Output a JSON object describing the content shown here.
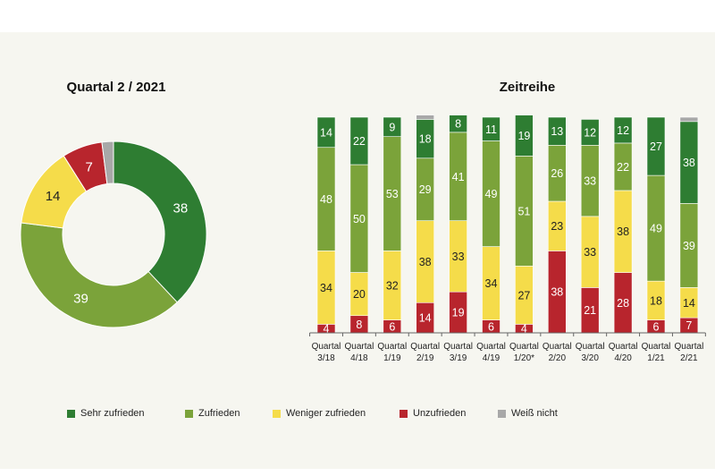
{
  "colors": {
    "sehr_zufrieden": "#2e7d32",
    "zufrieden": "#7ba33a",
    "weniger_zufrieden": "#f5dc4a",
    "unzufrieden": "#b8252d",
    "weiss_nicht": "#a8a8a8"
  },
  "chart_data": [
    {
      "type": "pie",
      "variant": "donut",
      "title": "Quartal 2 / 2021",
      "slices": [
        {
          "key": "sehr_zufrieden",
          "label": "Sehr zufrieden",
          "value": 38
        },
        {
          "key": "zufrieden",
          "label": "Zufrieden",
          "value": 39
        },
        {
          "key": "weniger_zufrieden",
          "label": "Weniger zufrieden",
          "value": 14
        },
        {
          "key": "unzufrieden",
          "label": "Unzufrieden",
          "value": 7
        },
        {
          "key": "weiss_nicht",
          "label": "Weiß nicht",
          "value": 2
        }
      ]
    },
    {
      "type": "bar",
      "stacked": true,
      "title": "Zeitreihe",
      "ylim": [
        0,
        100
      ],
      "categories": [
        [
          "Quartal",
          "3/18"
        ],
        [
          "Quartal",
          "4/18"
        ],
        [
          "Quartal",
          "1/19"
        ],
        [
          "Quartal",
          "2/19"
        ],
        [
          "Quartal",
          "3/19"
        ],
        [
          "Quartal",
          "4/19"
        ],
        [
          "Quartal",
          "1/20*"
        ],
        [
          "Quartal",
          "2/20"
        ],
        [
          "Quartal",
          "3/20"
        ],
        [
          "Quartal",
          "4/20"
        ],
        [
          "Quartal",
          "1/21"
        ],
        [
          "Quartal",
          "2/21"
        ]
      ],
      "series": [
        {
          "key": "unzufrieden",
          "name": "Unzufrieden",
          "values": [
            4,
            8,
            6,
            14,
            19,
            6,
            4,
            38,
            21,
            28,
            6,
            7
          ]
        },
        {
          "key": "weniger_zufrieden",
          "name": "Weniger zufrieden",
          "values": [
            34,
            20,
            32,
            38,
            33,
            34,
            27,
            23,
            33,
            38,
            18,
            14
          ]
        },
        {
          "key": "zufrieden",
          "name": "Zufrieden",
          "values": [
            48,
            50,
            53,
            29,
            41,
            49,
            51,
            26,
            33,
            22,
            49,
            39
          ]
        },
        {
          "key": "sehr_zufrieden",
          "name": "Sehr zufrieden",
          "values": [
            14,
            22,
            9,
            18,
            8,
            11,
            19,
            13,
            12,
            12,
            27,
            38
          ]
        },
        {
          "key": "weiss_nicht",
          "name": "Weiß nicht",
          "values": [
            0,
            0,
            0,
            2,
            0,
            0,
            0,
            0,
            0,
            0,
            0,
            2
          ]
        }
      ]
    }
  ],
  "legend": [
    {
      "key": "sehr_zufrieden",
      "label": "Sehr zufrieden"
    },
    {
      "key": "zufrieden",
      "label": "Zufrieden"
    },
    {
      "key": "weniger_zufrieden",
      "label": "Weniger zufrieden"
    },
    {
      "key": "unzufrieden",
      "label": "Unzufrieden"
    },
    {
      "key": "weiss_nicht",
      "label": "Weiß nicht"
    }
  ]
}
